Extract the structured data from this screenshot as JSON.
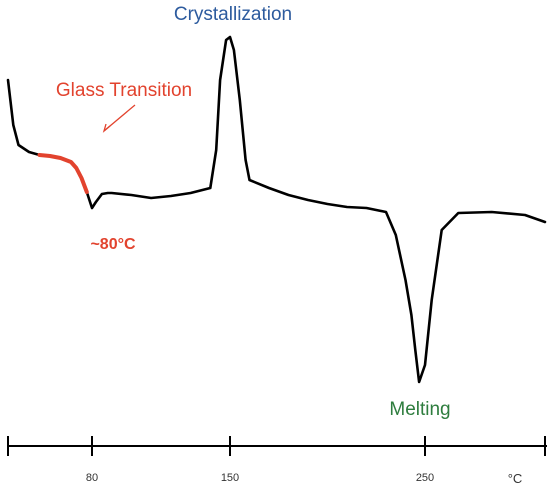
{
  "chart_data": {
    "type": "line",
    "title": "",
    "xlabel": "°C",
    "ylabel": "",
    "x_ticks": [
      80,
      150,
      250
    ],
    "grid": false,
    "legend": "none",
    "series": [
      {
        "color": "#000000",
        "x": [
          0,
          5,
          10,
          20,
          30,
          40,
          50,
          60,
          65,
          70,
          75,
          80,
          82,
          85,
          88,
          90,
          100,
          110,
          120,
          130,
          140,
          143,
          145,
          148,
          150,
          152,
          155,
          158,
          160,
          170,
          180,
          190,
          200,
          210,
          220,
          230,
          235,
          240,
          243,
          245,
          247,
          250,
          252,
          255,
          260,
          270,
          280,
          286
        ],
        "y": [
          1.0,
          0.55,
          0.35,
          0.28,
          0.25,
          0.24,
          0.22,
          0.18,
          0.12,
          0.02,
          -0.12,
          -0.28,
          -0.22,
          -0.14,
          -0.13,
          -0.13,
          -0.15,
          -0.18,
          -0.16,
          -0.13,
          -0.08,
          0.3,
          1.0,
          1.4,
          1.43,
          1.3,
          0.8,
          0.2,
          0.0,
          -0.08,
          -0.15,
          -0.2,
          -0.24,
          -0.27,
          -0.28,
          -0.32,
          -0.55,
          -1.0,
          -1.35,
          -1.7,
          -2.02,
          -1.85,
          -1.2,
          -0.5,
          -0.33,
          -0.32,
          -0.35,
          -0.42
        ]
      },
      {
        "color": "#e2432e",
        "x": [
          30,
          40,
          50,
          60,
          65,
          70,
          75
        ],
        "y": [
          0.25,
          0.24,
          0.22,
          0.18,
          0.12,
          0.02,
          -0.12
        ]
      }
    ],
    "annotations": [
      {
        "text": "Glass Transition",
        "color": "#e2432e"
      },
      {
        "text": "~80°C",
        "color": "#e2432e"
      },
      {
        "text": "Crystallization",
        "color": "#2d5b9e"
      },
      {
        "text": "Melting",
        "color": "#2e7d3e"
      }
    ]
  }
}
